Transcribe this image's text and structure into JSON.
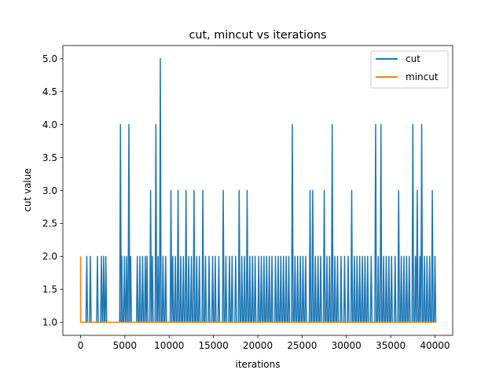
{
  "chart_data": {
    "type": "line",
    "title": "cut, mincut vs iterations",
    "xlabel": "iterations",
    "ylabel": "cut value",
    "xlim": [
      -2000,
      42000
    ],
    "ylim": [
      0.8,
      5.2
    ],
    "xticks": [
      0,
      5000,
      10000,
      15000,
      20000,
      25000,
      30000,
      35000,
      40000
    ],
    "xtick_labels": [
      "0",
      "5000",
      "10000",
      "15000",
      "20000",
      "25000",
      "30000",
      "35000",
      "40000"
    ],
    "yticks": [
      1.0,
      1.5,
      2.0,
      2.5,
      3.0,
      3.5,
      4.0,
      4.5,
      5.0
    ],
    "ytick_labels": [
      "1.0",
      "1.5",
      "2.0",
      "2.5",
      "3.0",
      "3.5",
      "4.0",
      "4.5",
      "5.0"
    ],
    "grid": false,
    "legend": "top-right",
    "series": [
      {
        "name": "cut",
        "color": "#1f77b4",
        "baseline": 1.0,
        "spikes": [
          [
            700,
            2
          ],
          [
            1100,
            2
          ],
          [
            1900,
            2
          ],
          [
            2350,
            2
          ],
          [
            2600,
            2
          ],
          [
            2850,
            2
          ],
          [
            4500,
            4
          ],
          [
            4650,
            2
          ],
          [
            4950,
            2
          ],
          [
            5200,
            2
          ],
          [
            5450,
            4
          ],
          [
            5650,
            2
          ],
          [
            6400,
            2
          ],
          [
            6700,
            2
          ],
          [
            7000,
            2
          ],
          [
            7300,
            2
          ],
          [
            7500,
            2
          ],
          [
            7900,
            3
          ],
          [
            8100,
            2
          ],
          [
            8500,
            4
          ],
          [
            8750,
            2
          ],
          [
            9000,
            5
          ],
          [
            9300,
            2
          ],
          [
            9600,
            2
          ],
          [
            10200,
            3
          ],
          [
            10400,
            2
          ],
          [
            10700,
            2
          ],
          [
            11000,
            3
          ],
          [
            11300,
            2
          ],
          [
            11600,
            2
          ],
          [
            11900,
            3
          ],
          [
            12200,
            2
          ],
          [
            12500,
            2
          ],
          [
            12800,
            3
          ],
          [
            13100,
            2
          ],
          [
            13400,
            2
          ],
          [
            13800,
            3
          ],
          [
            14100,
            2
          ],
          [
            14500,
            2
          ],
          [
            14900,
            2
          ],
          [
            15200,
            2
          ],
          [
            15600,
            2
          ],
          [
            16100,
            3
          ],
          [
            16400,
            2
          ],
          [
            16800,
            2
          ],
          [
            17100,
            2
          ],
          [
            17500,
            2
          ],
          [
            17900,
            3
          ],
          [
            18200,
            2
          ],
          [
            18500,
            2
          ],
          [
            18800,
            3
          ],
          [
            19100,
            2
          ],
          [
            19400,
            2
          ],
          [
            19700,
            2
          ],
          [
            20100,
            2
          ],
          [
            20400,
            2
          ],
          [
            20700,
            2
          ],
          [
            21000,
            2
          ],
          [
            21300,
            2
          ],
          [
            21600,
            2
          ],
          [
            22000,
            2
          ],
          [
            22300,
            2
          ],
          [
            22600,
            2
          ],
          [
            22900,
            2
          ],
          [
            23200,
            2
          ],
          [
            23500,
            2
          ],
          [
            23900,
            4
          ],
          [
            24200,
            2
          ],
          [
            24500,
            2
          ],
          [
            24800,
            2
          ],
          [
            25100,
            2
          ],
          [
            25400,
            2
          ],
          [
            25900,
            3
          ],
          [
            26200,
            3
          ],
          [
            26500,
            2
          ],
          [
            26800,
            2
          ],
          [
            27100,
            2
          ],
          [
            27500,
            3
          ],
          [
            27800,
            2
          ],
          [
            28100,
            2
          ],
          [
            28400,
            4
          ],
          [
            28700,
            2
          ],
          [
            29000,
            2
          ],
          [
            29400,
            2
          ],
          [
            29800,
            2
          ],
          [
            30200,
            2
          ],
          [
            30600,
            3
          ],
          [
            30900,
            2
          ],
          [
            31200,
            2
          ],
          [
            31500,
            2
          ],
          [
            31800,
            2
          ],
          [
            32100,
            2
          ],
          [
            32400,
            2
          ],
          [
            32800,
            2
          ],
          [
            33300,
            4
          ],
          [
            33600,
            2
          ],
          [
            33900,
            4
          ],
          [
            34200,
            2
          ],
          [
            34500,
            2
          ],
          [
            34800,
            2
          ],
          [
            35100,
            2
          ],
          [
            35500,
            2
          ],
          [
            35900,
            3
          ],
          [
            36200,
            2
          ],
          [
            36500,
            2
          ],
          [
            36800,
            2
          ],
          [
            37100,
            2
          ],
          [
            37500,
            4
          ],
          [
            37800,
            2
          ],
          [
            38000,
            3
          ],
          [
            38300,
            2
          ],
          [
            38500,
            4
          ],
          [
            38800,
            2
          ],
          [
            39100,
            2
          ],
          [
            39400,
            2
          ],
          [
            39700,
            3
          ],
          [
            40000,
            2
          ]
        ],
        "end_x": 40100
      },
      {
        "name": "mincut",
        "color": "#ff7f0e",
        "points": [
          [
            0,
            2
          ],
          [
            0,
            1
          ],
          [
            40100,
            1
          ]
        ]
      }
    ]
  }
}
